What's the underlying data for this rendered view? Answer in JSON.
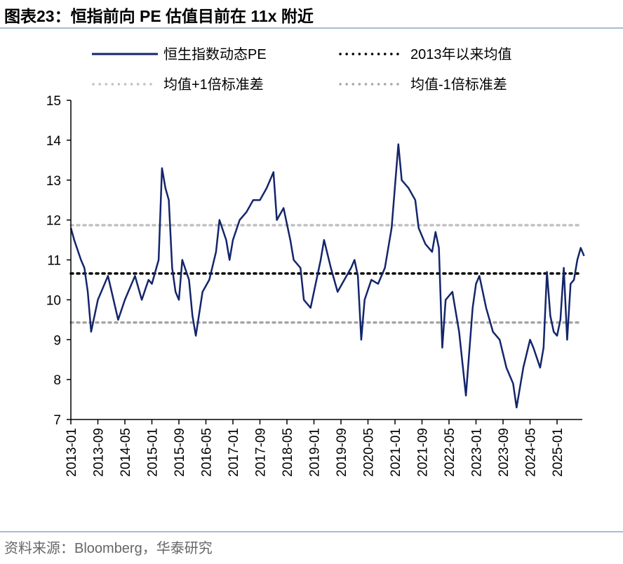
{
  "title": "图表23：恒指前向 PE 估值目前在 11x 附近",
  "source": "资料来源：Bloomberg，华泰研究",
  "chart_data": {
    "type": "line",
    "title": "",
    "xlabel": "",
    "ylabel": "",
    "ylim": [
      7,
      15
    ],
    "yticks": [
      7,
      8,
      9,
      10,
      11,
      12,
      13,
      14,
      15
    ],
    "xlim": [
      "2013-01",
      "2025-09"
    ],
    "xticks": [
      "2013-01",
      "2013-09",
      "2014-05",
      "2015-01",
      "2015-09",
      "2016-05",
      "2017-01",
      "2017-09",
      "2018-05",
      "2019-01",
      "2019-09",
      "2020-05",
      "2021-01",
      "2021-09",
      "2022-05",
      "2023-01",
      "2023-09",
      "2024-05",
      "2025-01"
    ],
    "grid": false,
    "legend_placement": "top",
    "colors": {
      "pe": "#14256b",
      "mean": "#000000",
      "plus1sd": "#c0c0c0",
      "minus1sd": "#a6a6a6"
    },
    "series": [
      {
        "name": "恒生指数动态PE",
        "style": "solid",
        "x": [
          "2013-01",
          "2013-02",
          "2013-04",
          "2013-05",
          "2013-06",
          "2013-07",
          "2013-09",
          "2013-12",
          "2014-03",
          "2014-05",
          "2014-08",
          "2014-10",
          "2014-12",
          "2015-01",
          "2015-03",
          "2015-04",
          "2015-05",
          "2015-06",
          "2015-07",
          "2015-08",
          "2015-09",
          "2015-10",
          "2015-12",
          "2016-01",
          "2016-02",
          "2016-04",
          "2016-06",
          "2016-08",
          "2016-09",
          "2016-11",
          "2016-12",
          "2017-01",
          "2017-03",
          "2017-05",
          "2017-07",
          "2017-09",
          "2017-11",
          "2018-01",
          "2018-02",
          "2018-04",
          "2018-06",
          "2018-07",
          "2018-09",
          "2018-10",
          "2018-12",
          "2019-01",
          "2019-03",
          "2019-04",
          "2019-06",
          "2019-08",
          "2019-10",
          "2019-12",
          "2020-01",
          "2020-02",
          "2020-03",
          "2020-04",
          "2020-06",
          "2020-08",
          "2020-10",
          "2020-12",
          "2021-02",
          "2021-03",
          "2021-05",
          "2021-07",
          "2021-08",
          "2021-10",
          "2021-12",
          "2022-01",
          "2022-02",
          "2022-03",
          "2022-04",
          "2022-06",
          "2022-08",
          "2022-10",
          "2022-12",
          "2023-01",
          "2023-02",
          "2023-04",
          "2023-06",
          "2023-08",
          "2023-10",
          "2023-12",
          "2024-01",
          "2024-03",
          "2024-05",
          "2024-06",
          "2024-08",
          "2024-09",
          "2024-10",
          "2024-11",
          "2024-12",
          "2025-01",
          "2025-02",
          "2025-03",
          "2025-04",
          "2025-05",
          "2025-06",
          "2025-07",
          "2025-08",
          "2025-09"
        ],
        "values": [
          11.8,
          11.5,
          11.0,
          10.8,
          10.2,
          9.2,
          10.0,
          10.6,
          9.5,
          10.0,
          10.6,
          10.0,
          10.5,
          10.4,
          11.0,
          13.3,
          12.8,
          12.5,
          10.8,
          10.2,
          10.0,
          11.0,
          10.5,
          9.6,
          9.1,
          10.2,
          10.5,
          11.2,
          12.0,
          11.5,
          11.0,
          11.5,
          12.0,
          12.2,
          12.5,
          12.5,
          12.8,
          13.2,
          12.0,
          12.3,
          11.5,
          11.0,
          10.8,
          10.0,
          9.8,
          10.2,
          11.0,
          11.5,
          10.8,
          10.2,
          10.5,
          10.8,
          11.0,
          10.6,
          9.0,
          10.0,
          10.5,
          10.4,
          10.8,
          11.8,
          13.9,
          13.0,
          12.8,
          12.5,
          11.8,
          11.4,
          11.2,
          11.7,
          11.3,
          8.8,
          10.0,
          10.2,
          9.2,
          7.6,
          9.8,
          10.4,
          10.6,
          9.8,
          9.2,
          9.0,
          8.3,
          7.9,
          7.3,
          8.3,
          9.0,
          8.8,
          8.3,
          8.8,
          10.7,
          9.6,
          9.2,
          9.1,
          9.5,
          10.8,
          9.0,
          10.4,
          10.5,
          11.0,
          11.3,
          11.1
        ]
      },
      {
        "name": "2013年以来均值",
        "style": "dotted",
        "value": 10.66
      },
      {
        "name": "均值+1倍标准差",
        "style": "dotted",
        "value": 11.87
      },
      {
        "name": "均值-1倍标准差",
        "style": "dotted",
        "value": 9.43
      }
    ]
  }
}
